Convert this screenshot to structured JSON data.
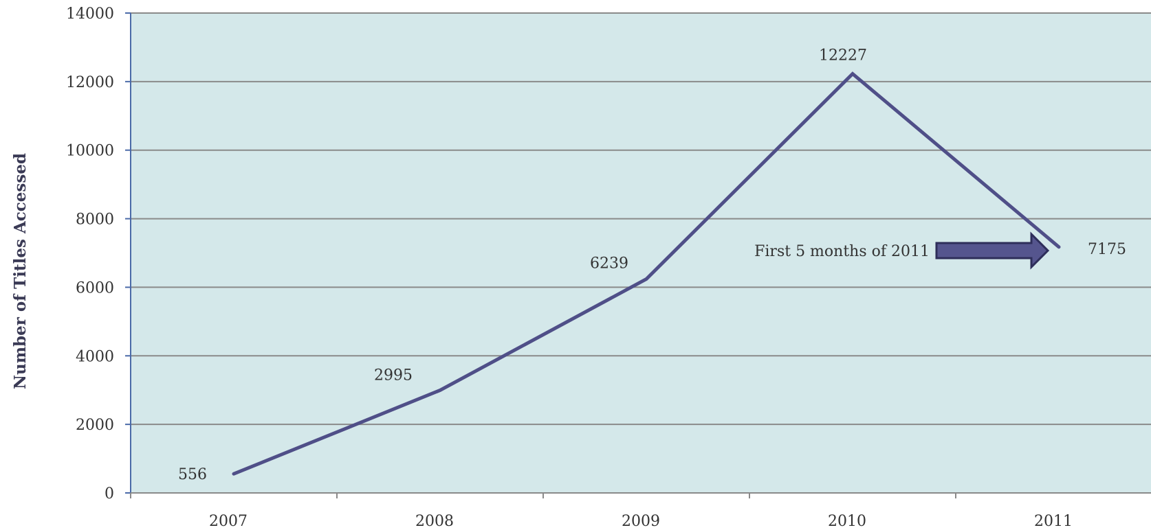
{
  "chart_data": {
    "type": "line",
    "title": "",
    "xlabel": "",
    "ylabel": "Number of Titles Accessed",
    "categories": [
      "2007",
      "2008",
      "2009",
      "2010",
      "2011"
    ],
    "series": [
      {
        "values": [
          556,
          2995,
          6239,
          12227,
          7175
        ],
        "data_labels": [
          "556",
          "2995",
          "6239",
          "12227",
          "7175"
        ],
        "color": "#4f4f88"
      }
    ],
    "ylim": [
      0,
      14000
    ],
    "y_ticks": [
      0,
      2000,
      4000,
      6000,
      8000,
      10000,
      12000,
      14000
    ],
    "y_tick_labels": [
      "0",
      "2000",
      "4000",
      "6000",
      "8000",
      "10000",
      "12000",
      "14000"
    ],
    "grid": true,
    "legend": "none",
    "annotations": [
      {
        "text": "First 5 months of 2011",
        "points_to": "2011"
      }
    ]
  },
  "colors": {
    "plot_background": "#d4e8ea",
    "gridline": "#8a8a8a",
    "axis": "#4a6aa8",
    "line": "#4f4f88",
    "arrow_fill": "#55558e",
    "arrow_stroke": "#2e2e5a"
  }
}
